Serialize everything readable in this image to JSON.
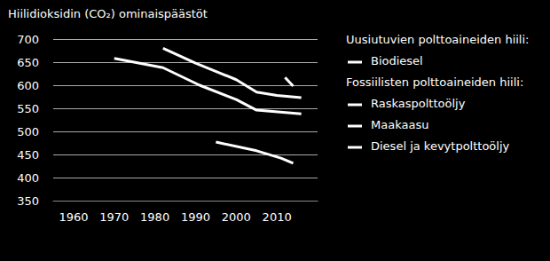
{
  "chart_data": {
    "type": "line",
    "title": "Hiilidioksidin (CO₂) ominaispäästöt",
    "xlim": [
      1955,
      2020
    ],
    "xticks": [
      1960,
      1970,
      1980,
      1990,
      2000,
      2010
    ],
    "ylim": [
      350,
      700
    ],
    "yticks": [
      350,
      400,
      450,
      500,
      550,
      600,
      650,
      700
    ],
    "grid": true,
    "legend": "right",
    "series": [
      {
        "name": "Biodiesel",
        "group": "Uusiutuvien polttoaineiden hiili:",
        "color": "#ffffff",
        "x": [
          2012,
          2014
        ],
        "values": [
          617,
          598
        ]
      },
      {
        "name": "Raskaspolttoöljy",
        "group": "Fossiilisten polttoaineiden hiili:",
        "color": "#ffffff",
        "x": [
          1982,
          1990,
          2000,
          2005,
          2010,
          2016
        ],
        "values": [
          680,
          648,
          612,
          585,
          578,
          573
        ]
      },
      {
        "name": "Maakaasu",
        "group": "Fossiilisten polttoaineiden hiili:",
        "color": "#ffffff",
        "x": [
          1995,
          2005,
          2011,
          2014
        ],
        "values": [
          477,
          458,
          442,
          431
        ]
      },
      {
        "name": "Diesel ja kevytpolttoöljy",
        "group": "Fossiilisten polttoaineiden hiili:",
        "color": "#ffffff",
        "x": [
          1970,
          1982,
          1991,
          2000,
          2005,
          2016
        ],
        "values": [
          658,
          638,
          600,
          569,
          546,
          538
        ]
      }
    ]
  }
}
